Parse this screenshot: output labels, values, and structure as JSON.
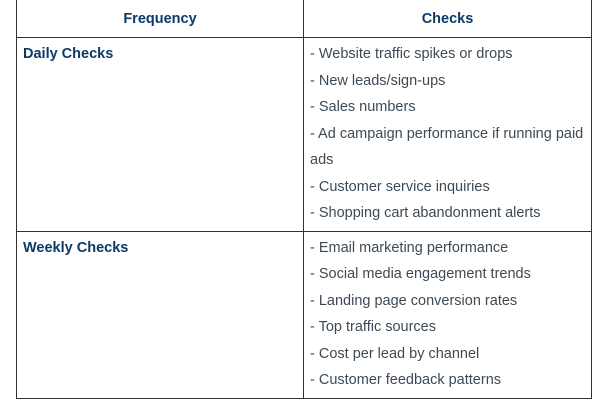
{
  "table": {
    "headers": {
      "frequency": "Frequency",
      "checks": "Checks"
    },
    "rows": [
      {
        "frequency": "Daily Checks",
        "checks": [
          "- Website traffic spikes or drops",
          "- New leads/sign-ups",
          "- Sales numbers",
          "- Ad campaign performance if running paid ads",
          "- Customer service inquiries",
          "- Shopping cart abandonment alerts"
        ]
      },
      {
        "frequency": "Weekly Checks",
        "checks": [
          "- Email marketing performance",
          "- Social media engagement trends",
          "- Landing page conversion rates",
          "- Top traffic sources",
          "- Cost per lead by channel",
          "- Customer feedback patterns"
        ]
      }
    ]
  },
  "colors": {
    "heading_text": "#0b3a66",
    "body_text": "#3d4a55",
    "border": "#333333"
  }
}
